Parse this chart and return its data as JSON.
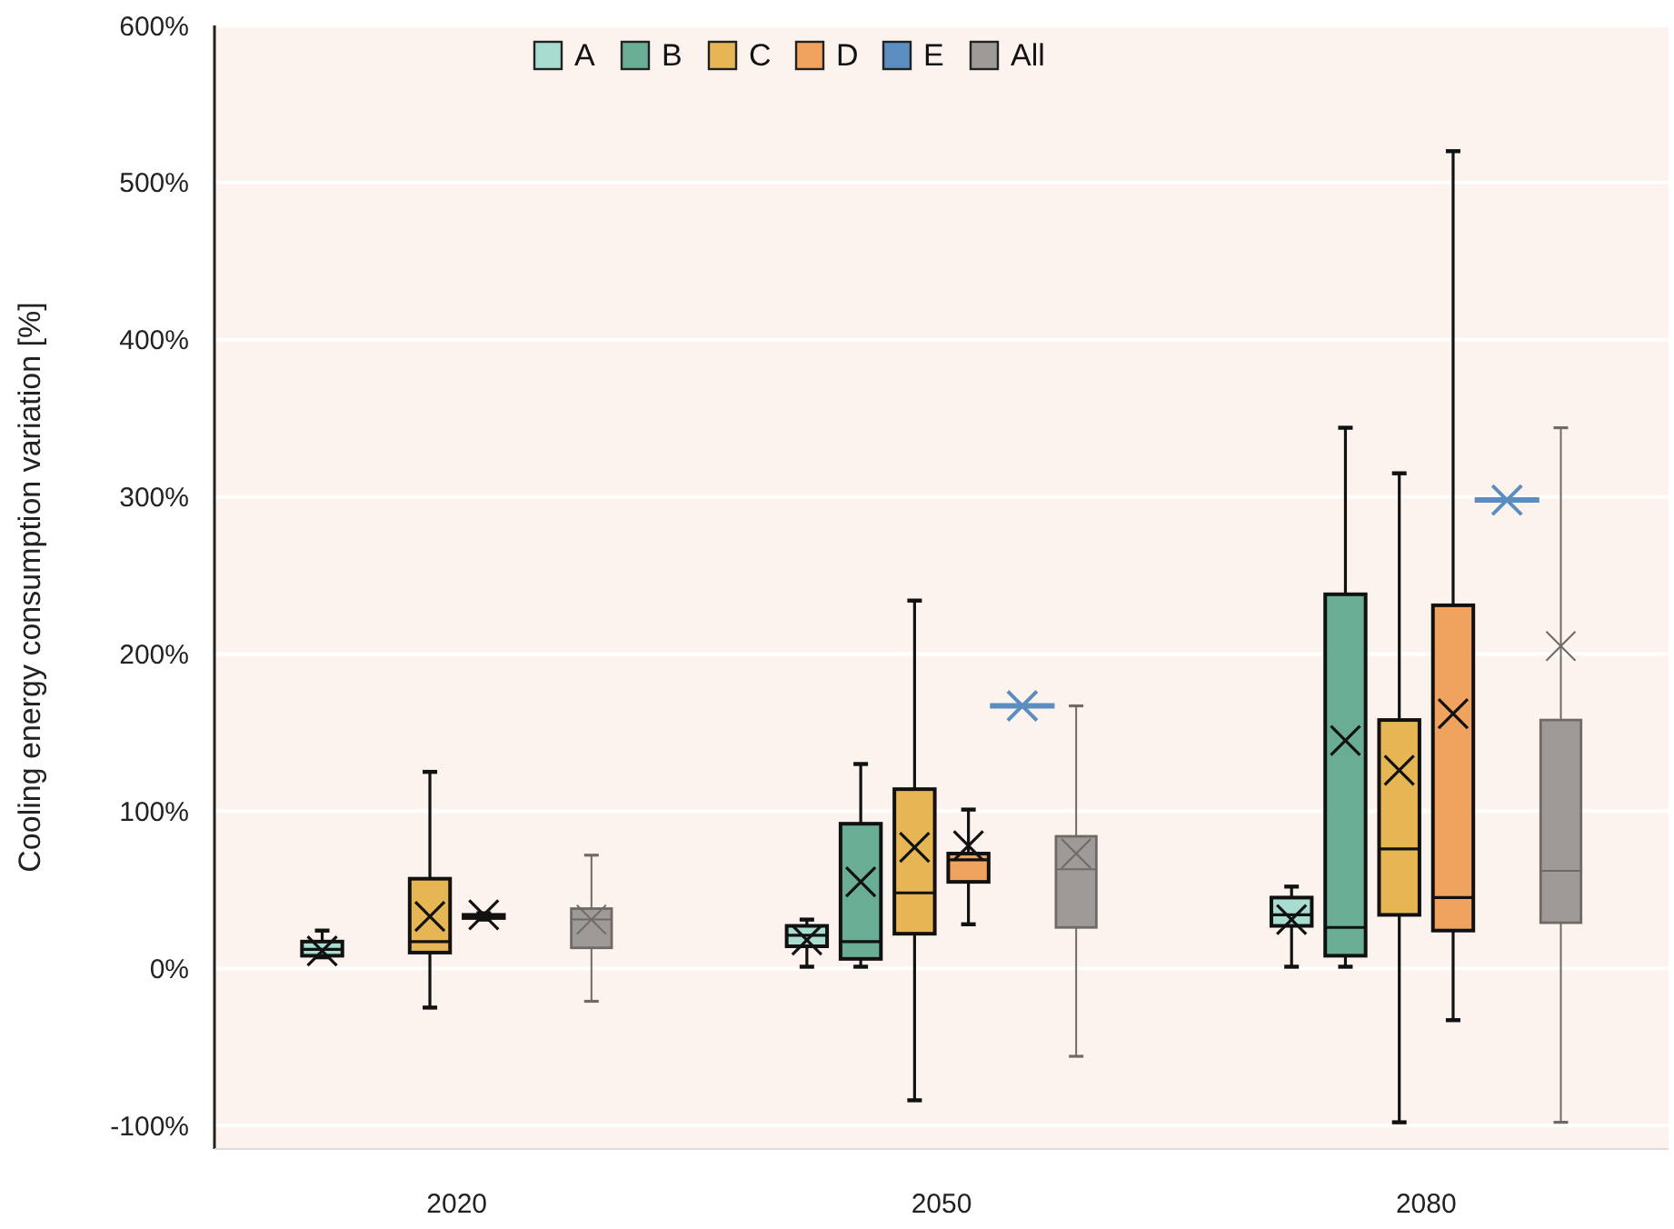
{
  "chart_data": {
    "type": "box",
    "ylabel": "Cooling energy consumption variation [%]",
    "categories": [
      "2020",
      "2050",
      "2080"
    ],
    "ylim": [
      -115,
      600
    ],
    "yticks": [
      {
        "value": -100,
        "label": "-100%"
      },
      {
        "value": 0,
        "label": "0%"
      },
      {
        "value": 100,
        "label": "100%"
      },
      {
        "value": 200,
        "label": "200%"
      },
      {
        "value": 300,
        "label": "300%"
      },
      {
        "value": 400,
        "label": "400%"
      },
      {
        "value": 500,
        "label": "500%"
      },
      {
        "value": 600,
        "label": "600%"
      }
    ],
    "grid": "y",
    "legend": "top",
    "marker": "cross",
    "series": [
      {
        "name": "A",
        "color": "#a8dccf",
        "boxes": [
          {
            "low": 7,
            "q1": 8,
            "median": 12,
            "q3": 17,
            "high": 24,
            "mean": 11
          },
          {
            "low": 1,
            "q1": 14,
            "median": 21,
            "q3": 27,
            "high": 31,
            "mean": 18
          },
          {
            "low": 1,
            "q1": 27,
            "median": 34,
            "q3": 45,
            "high": 52,
            "mean": 31
          }
        ]
      },
      {
        "name": "B",
        "color": "#6aad95",
        "boxes": [
          null,
          {
            "low": 1,
            "q1": 6,
            "median": 17,
            "q3": 92,
            "high": 130,
            "mean": 55
          },
          {
            "low": 1,
            "q1": 8,
            "median": 26,
            "q3": 238,
            "high": 344,
            "mean": 145
          }
        ]
      },
      {
        "name": "C",
        "color": "#e6b655",
        "boxes": [
          {
            "low": -25,
            "q1": 10,
            "median": 17,
            "q3": 57,
            "high": 125,
            "mean": 33
          },
          {
            "low": -84,
            "q1": 22,
            "median": 48,
            "q3": 114,
            "high": 234,
            "mean": 77
          },
          {
            "low": -98,
            "q1": 34,
            "median": 76,
            "q3": 158,
            "high": 315,
            "mean": 126
          }
        ]
      },
      {
        "name": "D",
        "color": "#f0a35e",
        "boxes": [
          {
            "low": 31,
            "q1": 32,
            "median": 33,
            "q3": 34,
            "high": 35,
            "mean": 34
          },
          {
            "low": 28,
            "q1": 55,
            "median": 69,
            "q3": 73,
            "high": 101,
            "mean": 78
          },
          {
            "low": -33,
            "q1": 24,
            "median": 45,
            "q3": 231,
            "high": 520,
            "mean": 162
          }
        ]
      },
      {
        "name": "E",
        "color": "#5b8dc0",
        "boxes": [
          null,
          {
            "low": 167,
            "q1": 167,
            "median": 167,
            "q3": 167,
            "high": 167,
            "mean": 167
          },
          {
            "low": 298,
            "q1": 298,
            "median": 298,
            "q3": 298,
            "high": 298,
            "mean": 298
          }
        ]
      },
      {
        "name": "All",
        "color": "#9e9a97",
        "boxes": [
          {
            "low": -21,
            "q1": 13,
            "median": 31,
            "q3": 38,
            "high": 72,
            "mean": 31
          },
          {
            "low": -56,
            "q1": 26,
            "median": 63,
            "q3": 84,
            "high": 167,
            "mean": 73
          },
          {
            "low": -98,
            "q1": 29,
            "median": 62,
            "q3": 158,
            "high": 344,
            "mean": 205
          }
        ]
      }
    ]
  }
}
